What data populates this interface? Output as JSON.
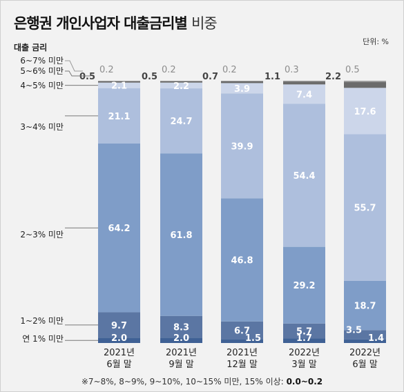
{
  "title_bold": "은행권 개인사업자 대출금리별",
  "title_light": "비중",
  "unit": "단위: %",
  "rate_header": "대출 금리",
  "footnote_main": "※7~8%, 8~9%, 9~10%, 10~15% 미만, 15% 이상:",
  "footnote_bold": "0.0~0.2",
  "colors": {
    "연 1% 미만": "#3f6195",
    "1~2% 미만": "#5b76a3",
    "2~3% 미만": "#7f9dc8",
    "3~4% 미만": "#aebfdd",
    "4~5% 미만": "#ccd6ea",
    "5~6% 미만": "#6b6b6b",
    "6~7% 미만": "#9a9a9a"
  },
  "chart_data": {
    "type": "bar",
    "stacked": true,
    "categories": [
      [
        "2021년",
        "6월 말"
      ],
      [
        "2021년",
        "9월 말"
      ],
      [
        "2021년",
        "12월 말"
      ],
      [
        "2022년",
        "3월 말"
      ],
      [
        "2022년",
        "6월 말"
      ]
    ],
    "series": [
      {
        "name": "연 1% 미만",
        "values": [
          2.0,
          2.0,
          1.5,
          1.7,
          1.4
        ]
      },
      {
        "name": "1~2% 미만",
        "values": [
          9.7,
          8.3,
          6.7,
          5.7,
          3.5
        ]
      },
      {
        "name": "2~3% 미만",
        "values": [
          64.2,
          61.8,
          46.8,
          29.2,
          18.7
        ]
      },
      {
        "name": "3~4% 미만",
        "values": [
          21.1,
          24.7,
          39.9,
          54.4,
          55.7
        ]
      },
      {
        "name": "4~5% 미만",
        "values": [
          2.1,
          2.2,
          3.9,
          7.4,
          17.6
        ]
      },
      {
        "name": "5~6% 미만",
        "values": [
          0.5,
          0.5,
          0.7,
          1.1,
          2.2
        ]
      },
      {
        "name": "6~7% 미만",
        "values": [
          0.2,
          0.2,
          0.2,
          0.3,
          0.5
        ]
      }
    ],
    "ylim": [
      0,
      100
    ]
  }
}
